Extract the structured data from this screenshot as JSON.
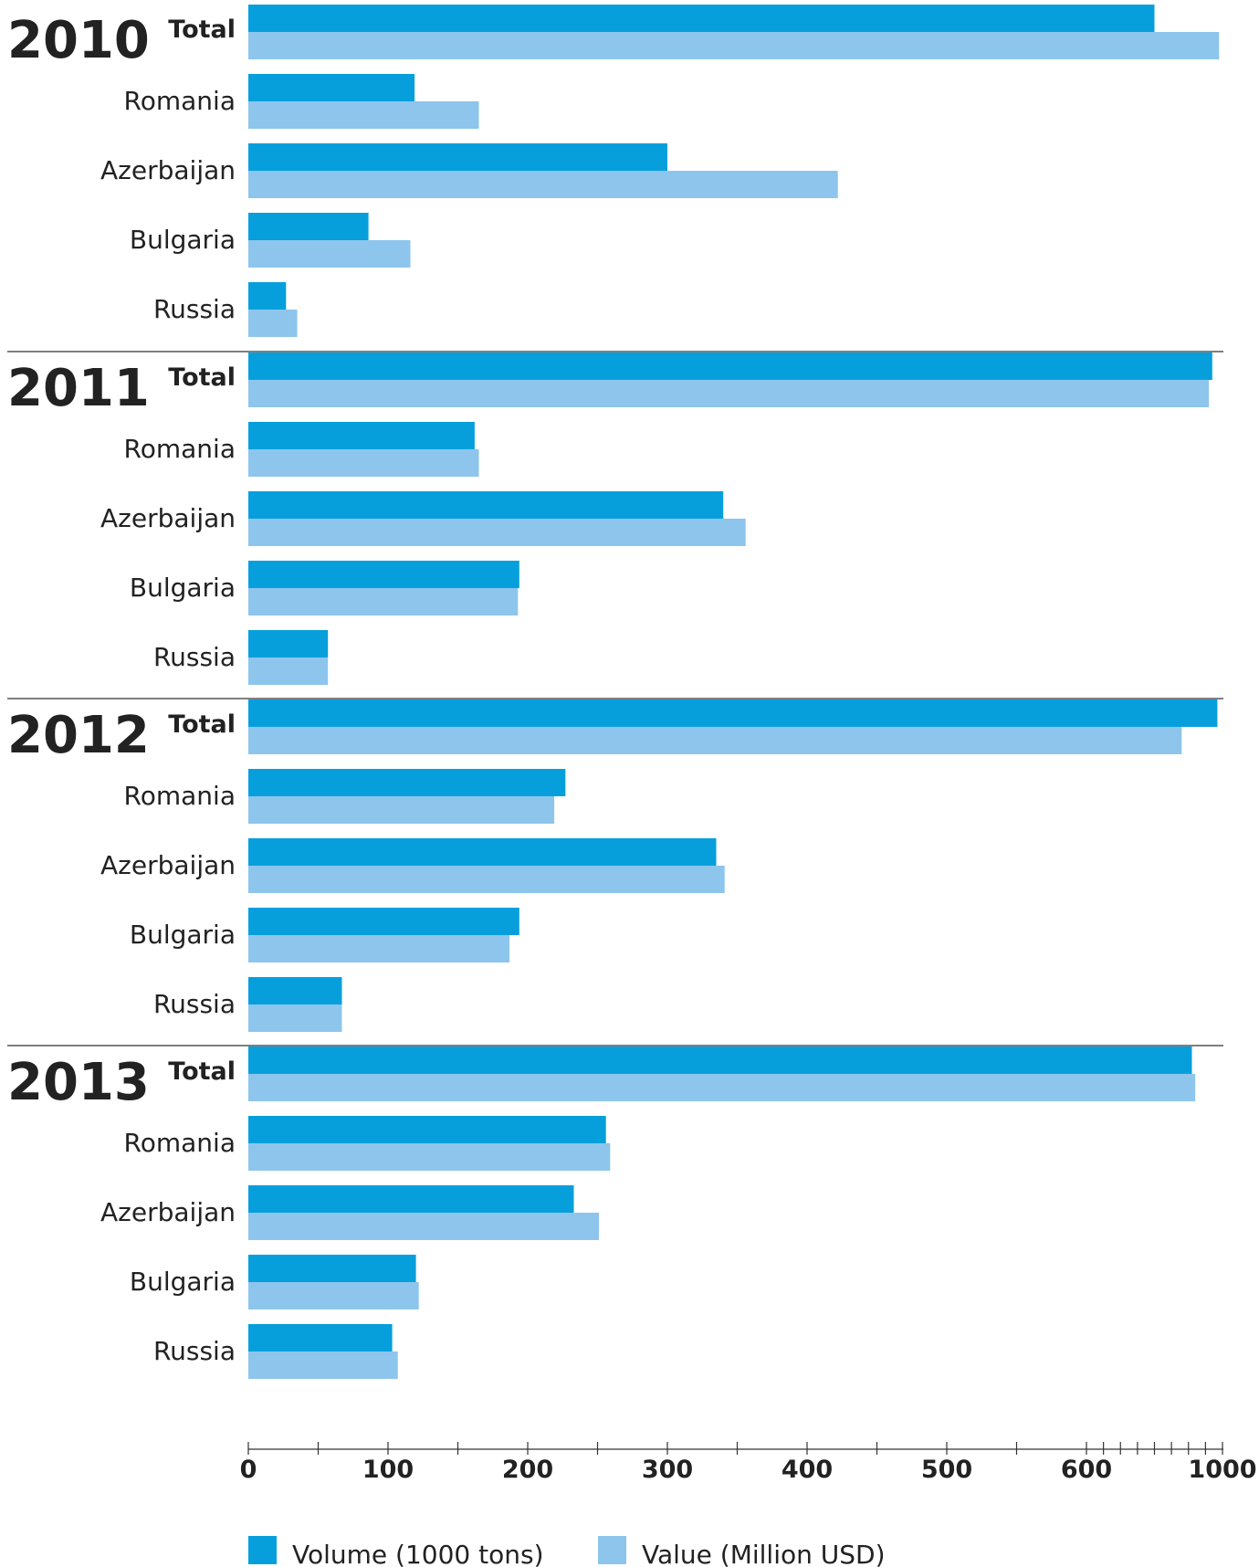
{
  "chart_data": {
    "type": "bar",
    "orientation": "horizontal",
    "axis": {
      "ticks": [
        0,
        100,
        200,
        300,
        400,
        500,
        600,
        1000
      ],
      "scale": "linear 0-600, compressed 600-1000"
    },
    "colors": {
      "volume": "#069fdc",
      "value": "#8dc5ec"
    },
    "groups": [
      {
        "year": "2010",
        "categories": [
          "Total",
          "Romania",
          "Azerbaijan",
          "Bulgaria",
          "Russia"
        ],
        "series": [
          {
            "name": "Volume (1000 tons)",
            "values": [
              800,
              119,
              300,
              86,
              27
            ]
          },
          {
            "name": "Value (Million USD)",
            "values": [
              990,
              165,
              422,
              116,
              35
            ]
          }
        ]
      },
      {
        "year": "2011",
        "categories": [
          "Total",
          "Romania",
          "Azerbaijan",
          "Bulgaria",
          "Russia"
        ],
        "series": [
          {
            "name": "Volume (1000 tons)",
            "values": [
              970,
              162,
              340,
              194,
              57
            ]
          },
          {
            "name": "Value (Million USD)",
            "values": [
              960,
              165,
              356,
              193,
              57
            ]
          }
        ]
      },
      {
        "year": "2012",
        "categories": [
          "Total",
          "Romania",
          "Azerbaijan",
          "Bulgaria",
          "Russia"
        ],
        "series": [
          {
            "name": "Volume (1000 tons)",
            "values": [
              985,
              227,
              335,
              194,
              67
            ]
          },
          {
            "name": "Value (Million USD)",
            "values": [
              880,
              219,
              341,
              187,
              67
            ]
          }
        ]
      },
      {
        "year": "2013",
        "categories": [
          "Total",
          "Romania",
          "Azerbaijan",
          "Bulgaria",
          "Russia"
        ],
        "series": [
          {
            "name": "Volume (1000 tons)",
            "values": [
              910,
              256,
              233,
              120,
              103
            ]
          },
          {
            "name": "Value (Million USD)",
            "values": [
              920,
              259,
              251,
              122,
              107
            ]
          }
        ]
      }
    ],
    "legend": {
      "position": "bottom",
      "items": [
        {
          "label": "Volume (1000 tons)",
          "color": "#069fdc"
        },
        {
          "label": "Value (Million USD)",
          "color": "#8dc5ec"
        }
      ]
    }
  }
}
